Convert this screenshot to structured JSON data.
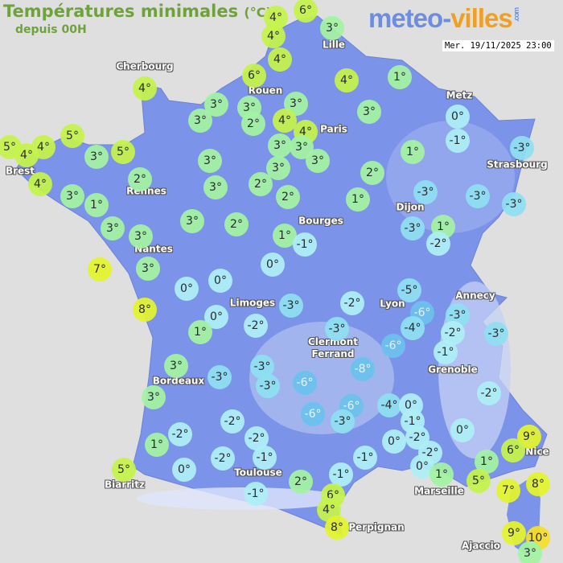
{
  "header": {
    "title": "Températures minimales",
    "unit": "(°C)",
    "subtitle": "depuis 00H"
  },
  "logo": {
    "part1": "meteo-",
    "part2": "villes",
    "suffix": ".com"
  },
  "datetime": "Mer. 19/11/2025 23:00",
  "colors": {
    "sea": "#e0dfdf",
    "land": "#7b93e8",
    "warm": "#e4f52e",
    "mild": "#c6f44c",
    "cool": "#a4f4a4",
    "zero": "#aef0f6",
    "cold": "#8fe0f2",
    "frost": "#6cc2ee"
  },
  "cities": [
    "Cherbourg",
    "Lille",
    "Rouen",
    "Paris",
    "Metz",
    "Strasbourg",
    "Brest",
    "Rennes",
    "Dijon",
    "Bourges",
    "Nantes",
    "Limoges",
    "Lyon",
    "Annecy",
    "Clermont\nFerrand",
    "Grenoble",
    "Bordeaux",
    "Toulouse",
    "Biarritz",
    "Marseille",
    "Nice",
    "Perpignan",
    "Ajaccio"
  ],
  "temperatures": [
    4,
    6,
    4,
    3,
    4,
    6,
    4,
    1,
    4,
    3,
    3,
    3,
    3,
    2,
    4,
    4,
    3,
    0,
    -1,
    5,
    5,
    4,
    4,
    3,
    5,
    3,
    3,
    3,
    3,
    1,
    -3,
    4,
    2,
    3,
    3,
    2,
    2,
    2,
    3,
    1,
    -3,
    -3,
    -3,
    1,
    3,
    3,
    3,
    2,
    1,
    -1,
    -3,
    1,
    -2,
    7,
    3,
    0,
    0,
    0,
    -5,
    -6,
    8,
    0,
    1,
    -3,
    -2,
    -2,
    -4,
    -3,
    -2,
    -3,
    -3,
    -6,
    -1,
    -8,
    3,
    -3,
    -3,
    -3,
    -6,
    3,
    -6,
    -6,
    -3,
    -4,
    0,
    -2,
    -2,
    -2,
    -2,
    -1,
    0,
    0,
    -2,
    -2,
    1,
    -2,
    -1,
    -1,
    -1,
    0,
    1,
    1,
    9,
    6,
    5,
    0,
    2,
    5,
    7,
    8,
    -1,
    6,
    4,
    8,
    9,
    10,
    3
  ]
}
